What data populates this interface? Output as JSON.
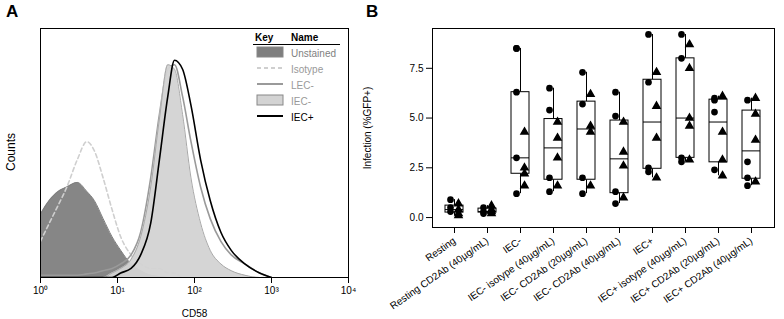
{
  "chart_data": [
    {
      "type": "line",
      "title": "A",
      "x_label": "CD58",
      "y_label": "Counts",
      "log": "x",
      "x": [
        1,
        1.3,
        1.7,
        2.2,
        3,
        4,
        5,
        6.5,
        8.5,
        11,
        15,
        20,
        27,
        35,
        45,
        55,
        70,
        90,
        120,
        160,
        220,
        300,
        450,
        700,
        1000
      ],
      "series": [
        {
          "name": "Unstained",
          "type": "area",
          "color": "#7f7f7f",
          "values": [
            14,
            17,
            19,
            20,
            21,
            19,
            17,
            13,
            9,
            6,
            3,
            1.5,
            0.5,
            0.2,
            0,
            0,
            0,
            0,
            0,
            0,
            0,
            0,
            0,
            0,
            0
          ]
        },
        {
          "name": "Isotype",
          "type": "line",
          "line_style": "dashed",
          "color": "#cfcfcf",
          "values": [
            8,
            12,
            16,
            20,
            26,
            30,
            28,
            22,
            15,
            9,
            5,
            3,
            2,
            2,
            1,
            1,
            0,
            0,
            0,
            0,
            0,
            0,
            0,
            0,
            0
          ]
        },
        {
          "name": "LEC-",
          "type": "line",
          "color": "#9a9a9a",
          "values": [
            0.5,
            0.5,
            0.5,
            0.5,
            0.5,
            0.8,
            1,
            1.5,
            2,
            3,
            5,
            10,
            22,
            36,
            46,
            47,
            40,
            30,
            20,
            13,
            8,
            5,
            3,
            1,
            0
          ]
        },
        {
          "name": "IEC-",
          "type": "area",
          "color": "#d3d3d3",
          "values": [
            0,
            0,
            0,
            0,
            0,
            0,
            0,
            0,
            1,
            2,
            4,
            9,
            20,
            35,
            47,
            46,
            36,
            22,
            12,
            6,
            3,
            1.5,
            0.5,
            0,
            0
          ]
        },
        {
          "name": "IEC+",
          "type": "line",
          "color": "#000000",
          "values": [
            0,
            0,
            0,
            0,
            0,
            0,
            0,
            0,
            0,
            1,
            2,
            5,
            12,
            26,
            40,
            48,
            46,
            38,
            26,
            17,
            10,
            6,
            3,
            1,
            0
          ]
        }
      ],
      "xlim": [
        1,
        10000
      ],
      "xticks": [
        {
          "value": 1,
          "label": "10⁰"
        },
        {
          "value": 10,
          "label": "10¹"
        },
        {
          "value": 100,
          "label": "10²"
        },
        {
          "value": 1000,
          "label": "10³"
        },
        {
          "value": 10000,
          "label": "10⁴"
        }
      ],
      "ylim": [
        0,
        55
      ],
      "yticks": [],
      "tick_labels": "x",
      "legend": "top-right",
      "legend_header": [
        "Key",
        "Name"
      ]
    },
    {
      "type": "box",
      "title": "B",
      "y_label": "Infection (%GFP+)",
      "categories": [
        "Resting",
        "Resting CD2Ab (40µg/mL)",
        "IEC-",
        "IEC- isotype (40µg/mL)",
        "IEC- CD2Ab (20µg/mL)",
        "IEC- CD2Ab (40µg/mL)",
        "IEC+",
        "IEC+ isotype (40µg/mL)",
        "IEC+ CD2Ab (20µg/mL)",
        "IEC+ CD2Ab (40µg/mL)"
      ],
      "series": [
        {
          "marker": "circle",
          "color": "#000000",
          "values": [
            [
              0.3,
              0.9,
              0.5
            ],
            [
              0.3,
              0.5,
              0.2
            ],
            [
              8.5,
              8.5,
              6.3,
              3.0,
              1.2
            ],
            [
              6.5,
              5.4,
              2.0,
              1.3
            ],
            [
              7.3,
              5.7,
              2.0,
              1.2
            ],
            [
              6.3,
              5.1,
              1.3,
              0.7
            ],
            [
              9.2,
              6.8,
              2.5,
              2.3
            ],
            [
              9.2,
              8.0,
              3.0,
              2.8
            ],
            [
              6.0,
              5.9,
              2.4,
              5.3
            ],
            [
              5.9,
              2.8,
              2.0,
              1.6
            ]
          ]
        },
        {
          "marker": "triangle",
          "color": "#000000",
          "values": [
            [
              0.2,
              0.7,
              0.4,
              0.1
            ],
            [
              0.4,
              0.6,
              0.3,
              0.2
            ],
            [
              4.3,
              2.5,
              2.2,
              1.6
            ],
            [
              4.8,
              4.0,
              3.0,
              1.6
            ],
            [
              6.2,
              4.3,
              4.6,
              1.6
            ],
            [
              4.8,
              3.3,
              2.6,
              1.0
            ],
            [
              7.3,
              5.6,
              4.0,
              2.0
            ],
            [
              8.7,
              7.5,
              4.6,
              5.0,
              2.9
            ],
            [
              6.1,
              4.3,
              2.9,
              2.1
            ],
            [
              6.0,
              5.2,
              3.9,
              1.8
            ]
          ]
        }
      ],
      "ylim": [
        -0.5,
        9.5
      ],
      "yticks": [
        {
          "value": 0,
          "label": "0.0"
        },
        {
          "value": 2.5,
          "label": "2.5"
        },
        {
          "value": 5,
          "label": "5.0"
        },
        {
          "value": 7.5,
          "label": "7.5"
        }
      ],
      "grid": false
    }
  ]
}
